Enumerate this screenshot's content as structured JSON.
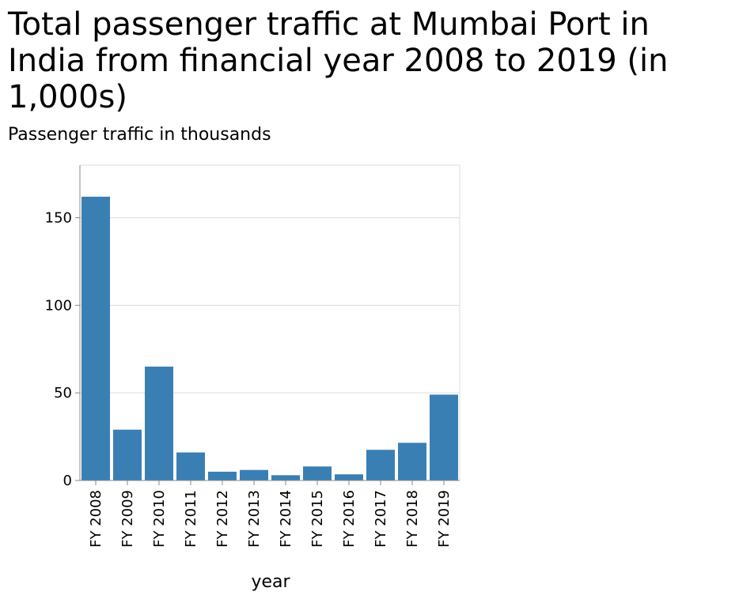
{
  "chart_data": {
    "type": "bar",
    "title": "Total passenger traffic at Mumbai Port in India from financial year 2008 to 2019 (in 1,000s)",
    "subtitle": "Passenger traffic in thousands",
    "xlabel": "year",
    "ylabel": "",
    "categories": [
      "FY 2008",
      "FY 2009",
      "FY 2010",
      "FY 2011",
      "FY 2012",
      "FY 2013",
      "FY 2014",
      "FY 2015",
      "FY 2016",
      "FY 2017",
      "FY 2018",
      "FY 2019"
    ],
    "values": [
      162,
      29,
      65,
      16,
      5,
      6,
      3,
      8,
      3.5,
      17.5,
      21.5,
      49
    ],
    "ylim": [
      0,
      180
    ],
    "yticks": [
      0,
      50,
      100,
      150
    ],
    "grid": true,
    "bar_color": "#3a7fb4",
    "grid_color": "#dddddd",
    "axis_color": "#888888"
  }
}
